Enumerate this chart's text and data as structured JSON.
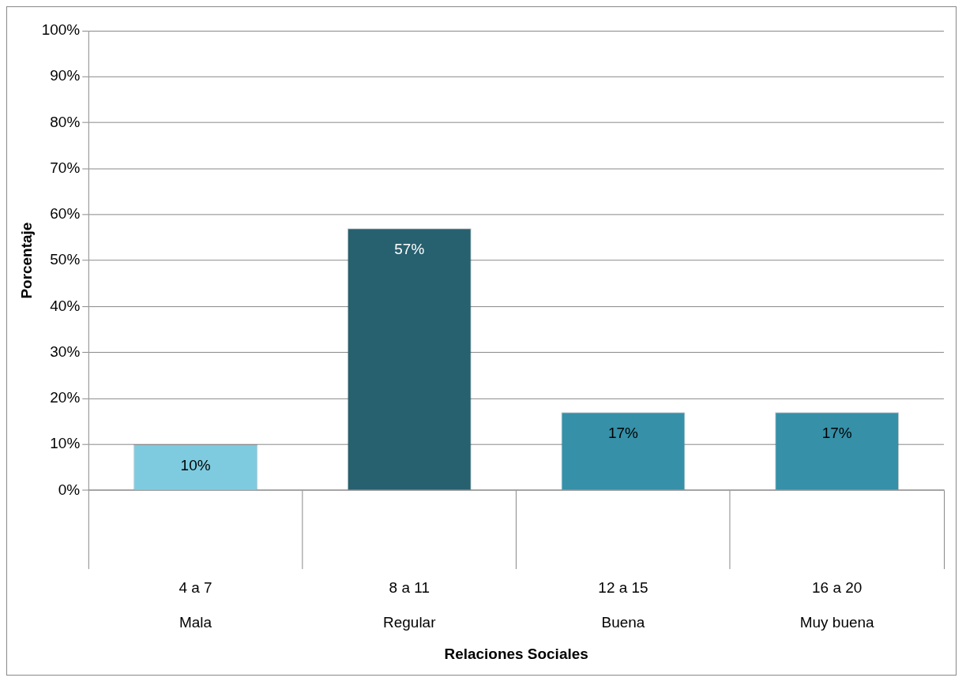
{
  "chart_data": {
    "type": "bar",
    "xlabel": "Relaciones Sociales",
    "ylabel": "Porcentaje",
    "categories": [
      "4 a 7\nMala",
      "8 a 11\nRegular",
      "12 a 15\nBuena",
      "16 a 20\nMuy buena"
    ],
    "values": [
      10,
      57,
      17,
      17
    ],
    "colors": [
      "#7ecbe0",
      "#27606f",
      "#3590a8",
      "#3590a8"
    ],
    "value_labels": [
      "10%",
      "57%",
      "17%",
      "17%"
    ],
    "ylim": [
      0,
      100
    ],
    "yticks": [
      {
        "value": 0,
        "label": "0%"
      },
      {
        "value": 10,
        "label": "10%"
      },
      {
        "value": 20,
        "label": "20%"
      },
      {
        "value": 30,
        "label": "30%"
      },
      {
        "value": 40,
        "label": "40%"
      },
      {
        "value": 50,
        "label": "50%"
      },
      {
        "value": 60,
        "label": "60%"
      },
      {
        "value": 70,
        "label": "70%"
      },
      {
        "value": 80,
        "label": "80%"
      },
      {
        "value": 90,
        "label": "90%"
      },
      {
        "value": 100,
        "label": "100%"
      }
    ],
    "grid": "y",
    "legend": false
  }
}
